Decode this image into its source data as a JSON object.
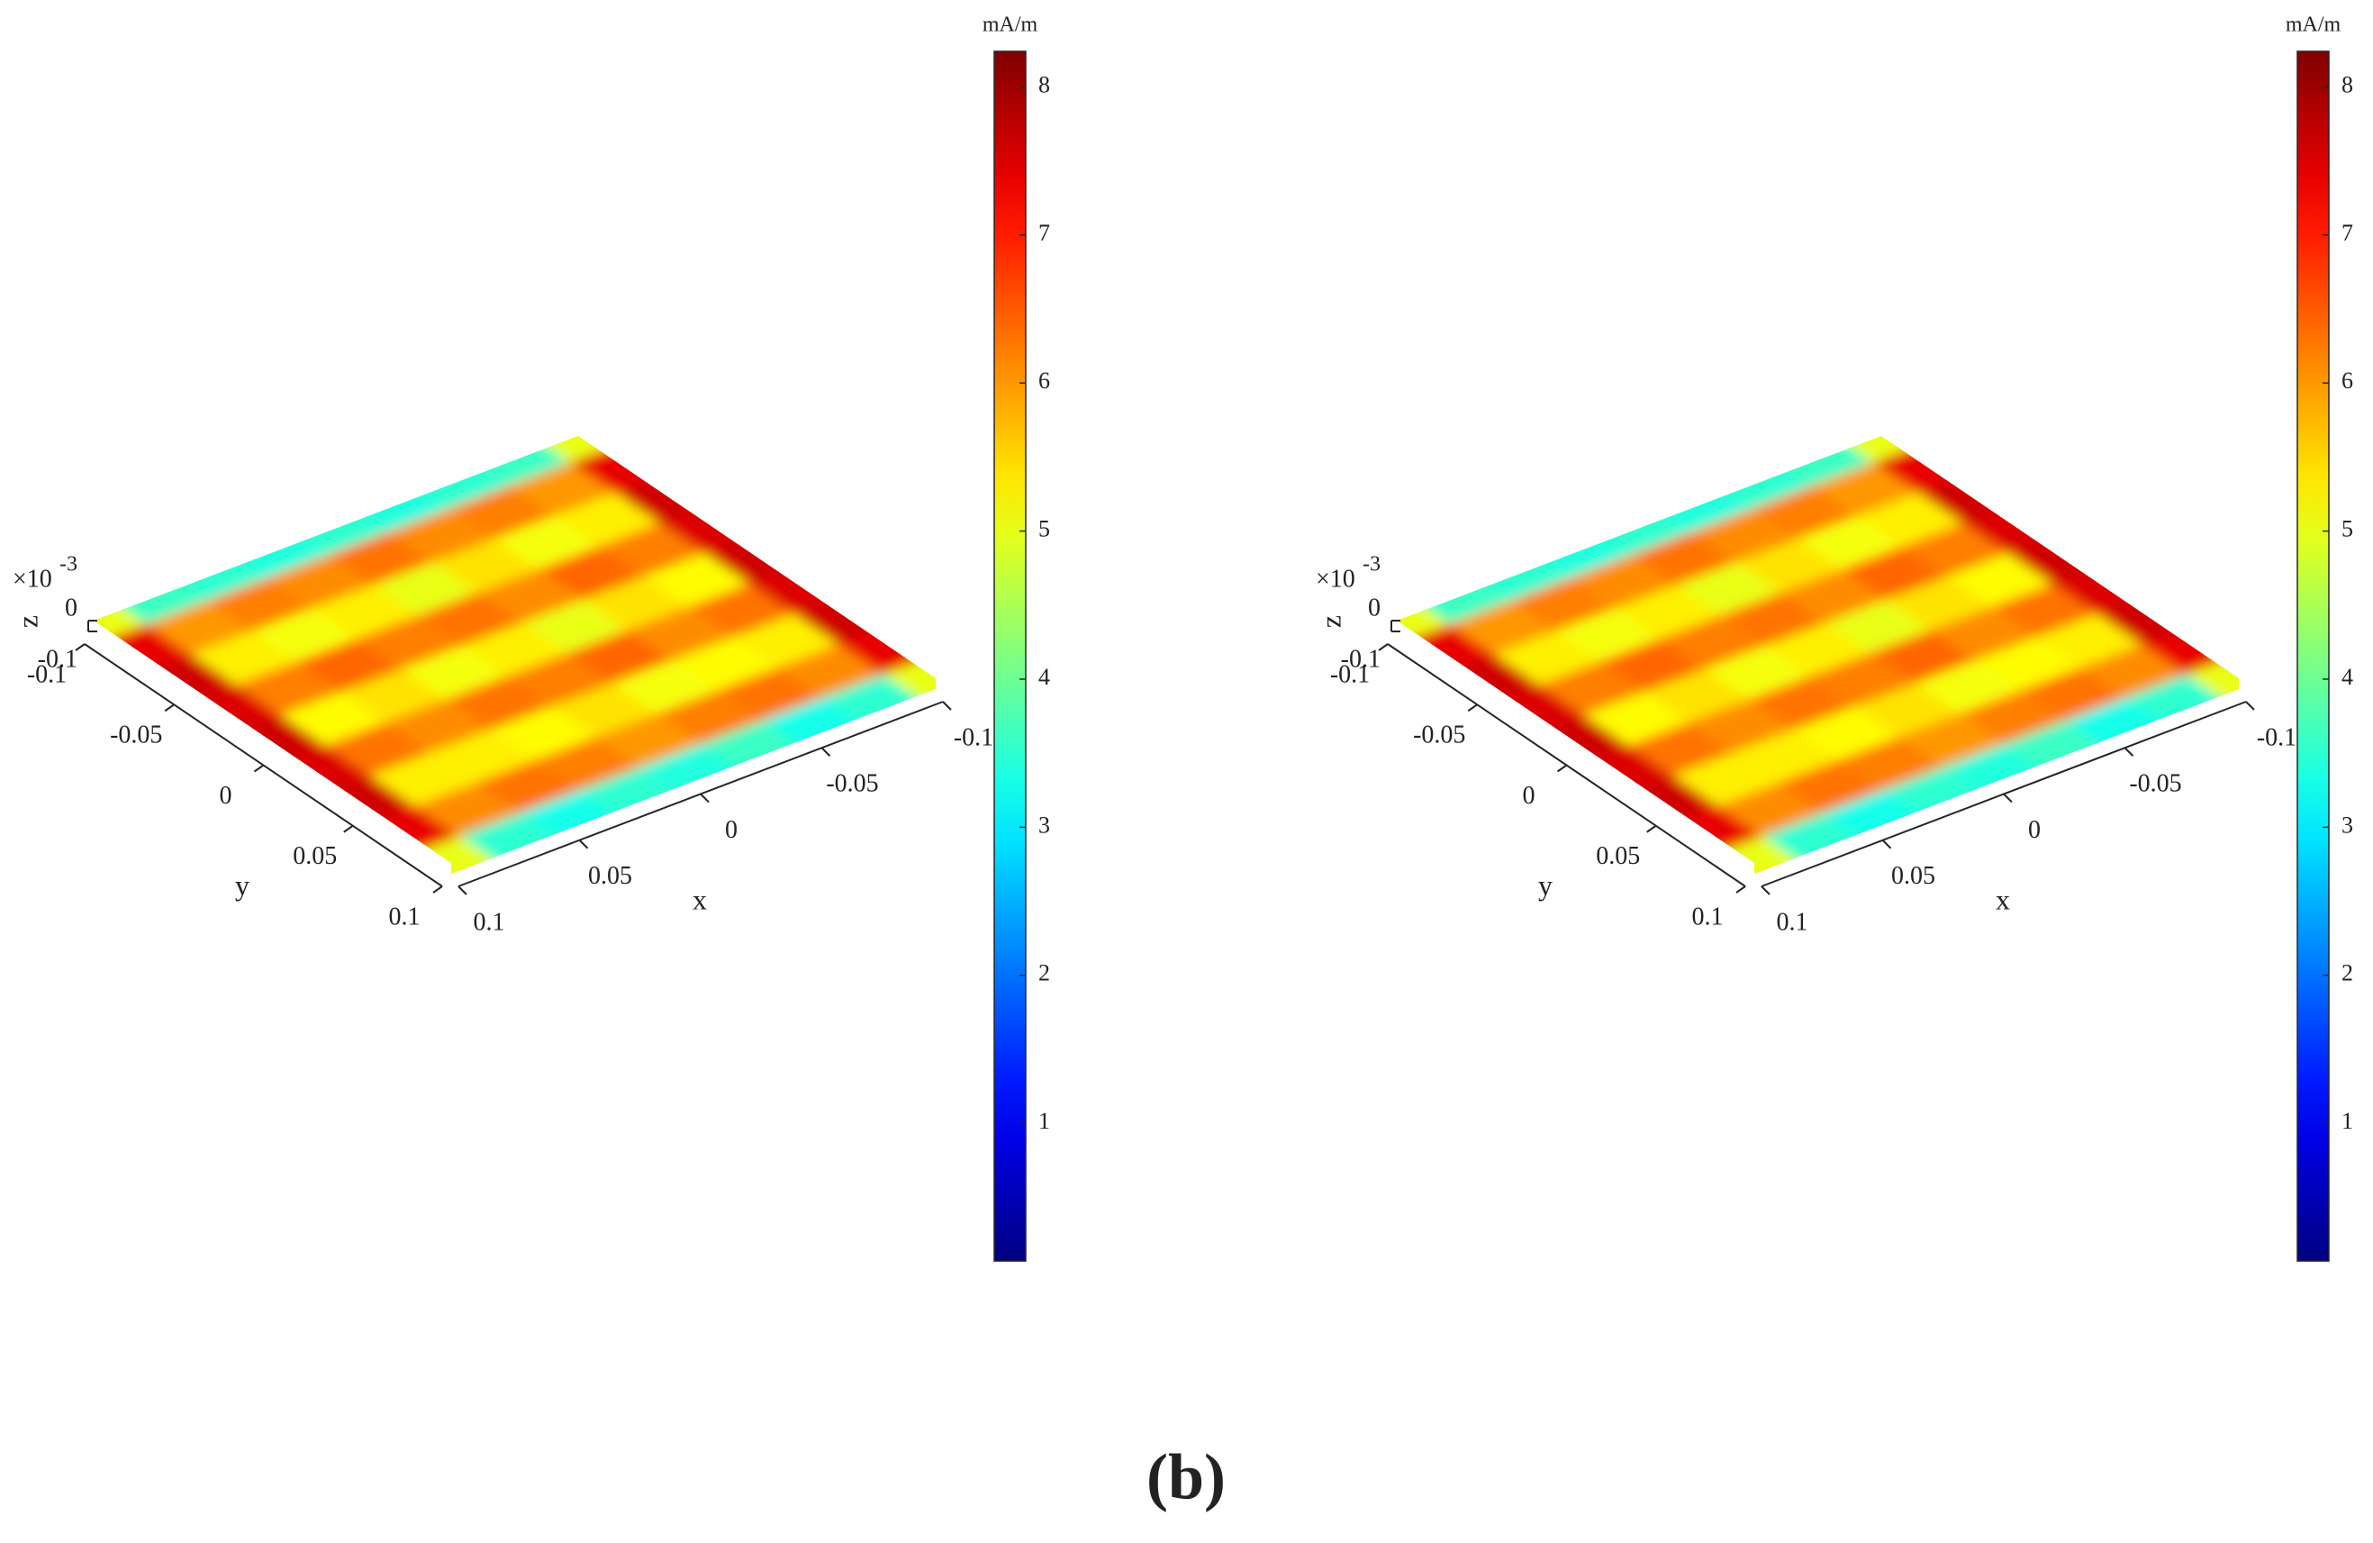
{
  "caption": "(b)",
  "chart_data": [
    {
      "type": "surface3d",
      "colormap": "jet",
      "xlabel": "x",
      "ylabel": "y",
      "zlabel": "z",
      "zscale_base": "×10",
      "zscale_exponent": "-3",
      "colorbar_label": "mA/m",
      "clim": [
        0.07,
        8.24
      ],
      "cticks": [
        1,
        2,
        3,
        4,
        5,
        6,
        7,
        8
      ],
      "xlim": [
        -0.1,
        0.1
      ],
      "xticks": [
        -0.1,
        -0.05,
        0,
        0.05,
        0.1
      ],
      "ylim": [
        -0.1,
        0.1
      ],
      "yticks": [
        -0.1,
        -0.05,
        0,
        0.05,
        0.1
      ],
      "zlim": [
        -0.1,
        0
      ],
      "zticks": [
        -0.1,
        0
      ],
      "x": [
        -0.1,
        -0.075,
        -0.05,
        -0.025,
        0,
        0.025,
        0.05,
        0.075,
        0.1
      ],
      "y": [
        -0.1,
        -0.075,
        -0.05,
        -0.025,
        0,
        0.025,
        0.05,
        0.075,
        0.1
      ],
      "values": [
        [
          5.0,
          3.6,
          3.5,
          3.4,
          3.5,
          3.4,
          3.5,
          3.6,
          5.0
        ],
        [
          7.4,
          6.0,
          6.2,
          6.1,
          6.3,
          6.1,
          6.2,
          6.0,
          7.4
        ],
        [
          7.6,
          5.3,
          5.1,
          5.4,
          5.0,
          5.3,
          5.1,
          5.3,
          7.6
        ],
        [
          7.5,
          6.2,
          6.4,
          6.1,
          6.3,
          6.2,
          6.4,
          6.2,
          7.5
        ],
        [
          7.6,
          5.2,
          5.4,
          5.0,
          5.3,
          5.1,
          5.4,
          5.2,
          7.6
        ],
        [
          7.5,
          6.3,
          6.1,
          6.4,
          6.2,
          6.3,
          6.1,
          6.3,
          7.5
        ],
        [
          7.6,
          5.3,
          5.2,
          5.1,
          5.4,
          5.2,
          5.3,
          5.3,
          7.6
        ],
        [
          7.4,
          6.1,
          6.3,
          6.2,
          6.0,
          6.2,
          6.3,
          6.1,
          7.4
        ],
        [
          5.0,
          3.5,
          3.3,
          3.6,
          3.4,
          3.5,
          3.3,
          3.5,
          5.0
        ]
      ]
    },
    {
      "type": "surface3d",
      "colormap": "jet",
      "xlabel": "x",
      "ylabel": "y",
      "zlabel": "z",
      "zscale_base": "×10",
      "zscale_exponent": "-3",
      "colorbar_label": "mA/m",
      "clim": [
        0.07,
        8.24
      ],
      "cticks": [
        1,
        2,
        3,
        4,
        5,
        6,
        7,
        8
      ],
      "xlim": [
        -0.1,
        0.1
      ],
      "xticks": [
        -0.1,
        -0.05,
        0,
        0.05,
        0.1
      ],
      "ylim": [
        -0.1,
        0.1
      ],
      "yticks": [
        -0.1,
        -0.05,
        0,
        0.05,
        0.1
      ],
      "zlim": [
        -0.1,
        0
      ],
      "zticks": [
        -0.1,
        0
      ],
      "x": [
        -0.1,
        -0.075,
        -0.05,
        -0.025,
        0,
        0.025,
        0.05,
        0.075,
        0.1
      ],
      "y": [
        -0.1,
        -0.075,
        -0.05,
        -0.025,
        0,
        0.025,
        0.05,
        0.075,
        0.1
      ],
      "values": [
        [
          5.0,
          3.6,
          3.5,
          3.4,
          3.5,
          3.4,
          3.5,
          3.6,
          5.0
        ],
        [
          7.4,
          6.0,
          6.2,
          6.1,
          6.3,
          6.1,
          6.2,
          6.0,
          7.4
        ],
        [
          7.6,
          5.3,
          5.1,
          5.4,
          5.0,
          5.3,
          5.1,
          5.3,
          7.6
        ],
        [
          7.5,
          6.2,
          6.4,
          6.1,
          6.3,
          6.2,
          6.4,
          6.2,
          7.5
        ],
        [
          7.6,
          5.2,
          5.4,
          5.0,
          5.3,
          5.1,
          5.4,
          5.2,
          7.6
        ],
        [
          7.5,
          6.3,
          6.1,
          6.4,
          6.2,
          6.3,
          6.1,
          6.3,
          7.5
        ],
        [
          7.6,
          5.3,
          5.2,
          5.1,
          5.4,
          5.2,
          5.3,
          5.3,
          7.6
        ],
        [
          7.4,
          6.1,
          6.3,
          6.2,
          6.0,
          6.2,
          6.3,
          6.1,
          7.4
        ],
        [
          5.0,
          3.5,
          3.3,
          3.6,
          3.4,
          3.5,
          3.3,
          3.5,
          5.0
        ]
      ]
    }
  ]
}
